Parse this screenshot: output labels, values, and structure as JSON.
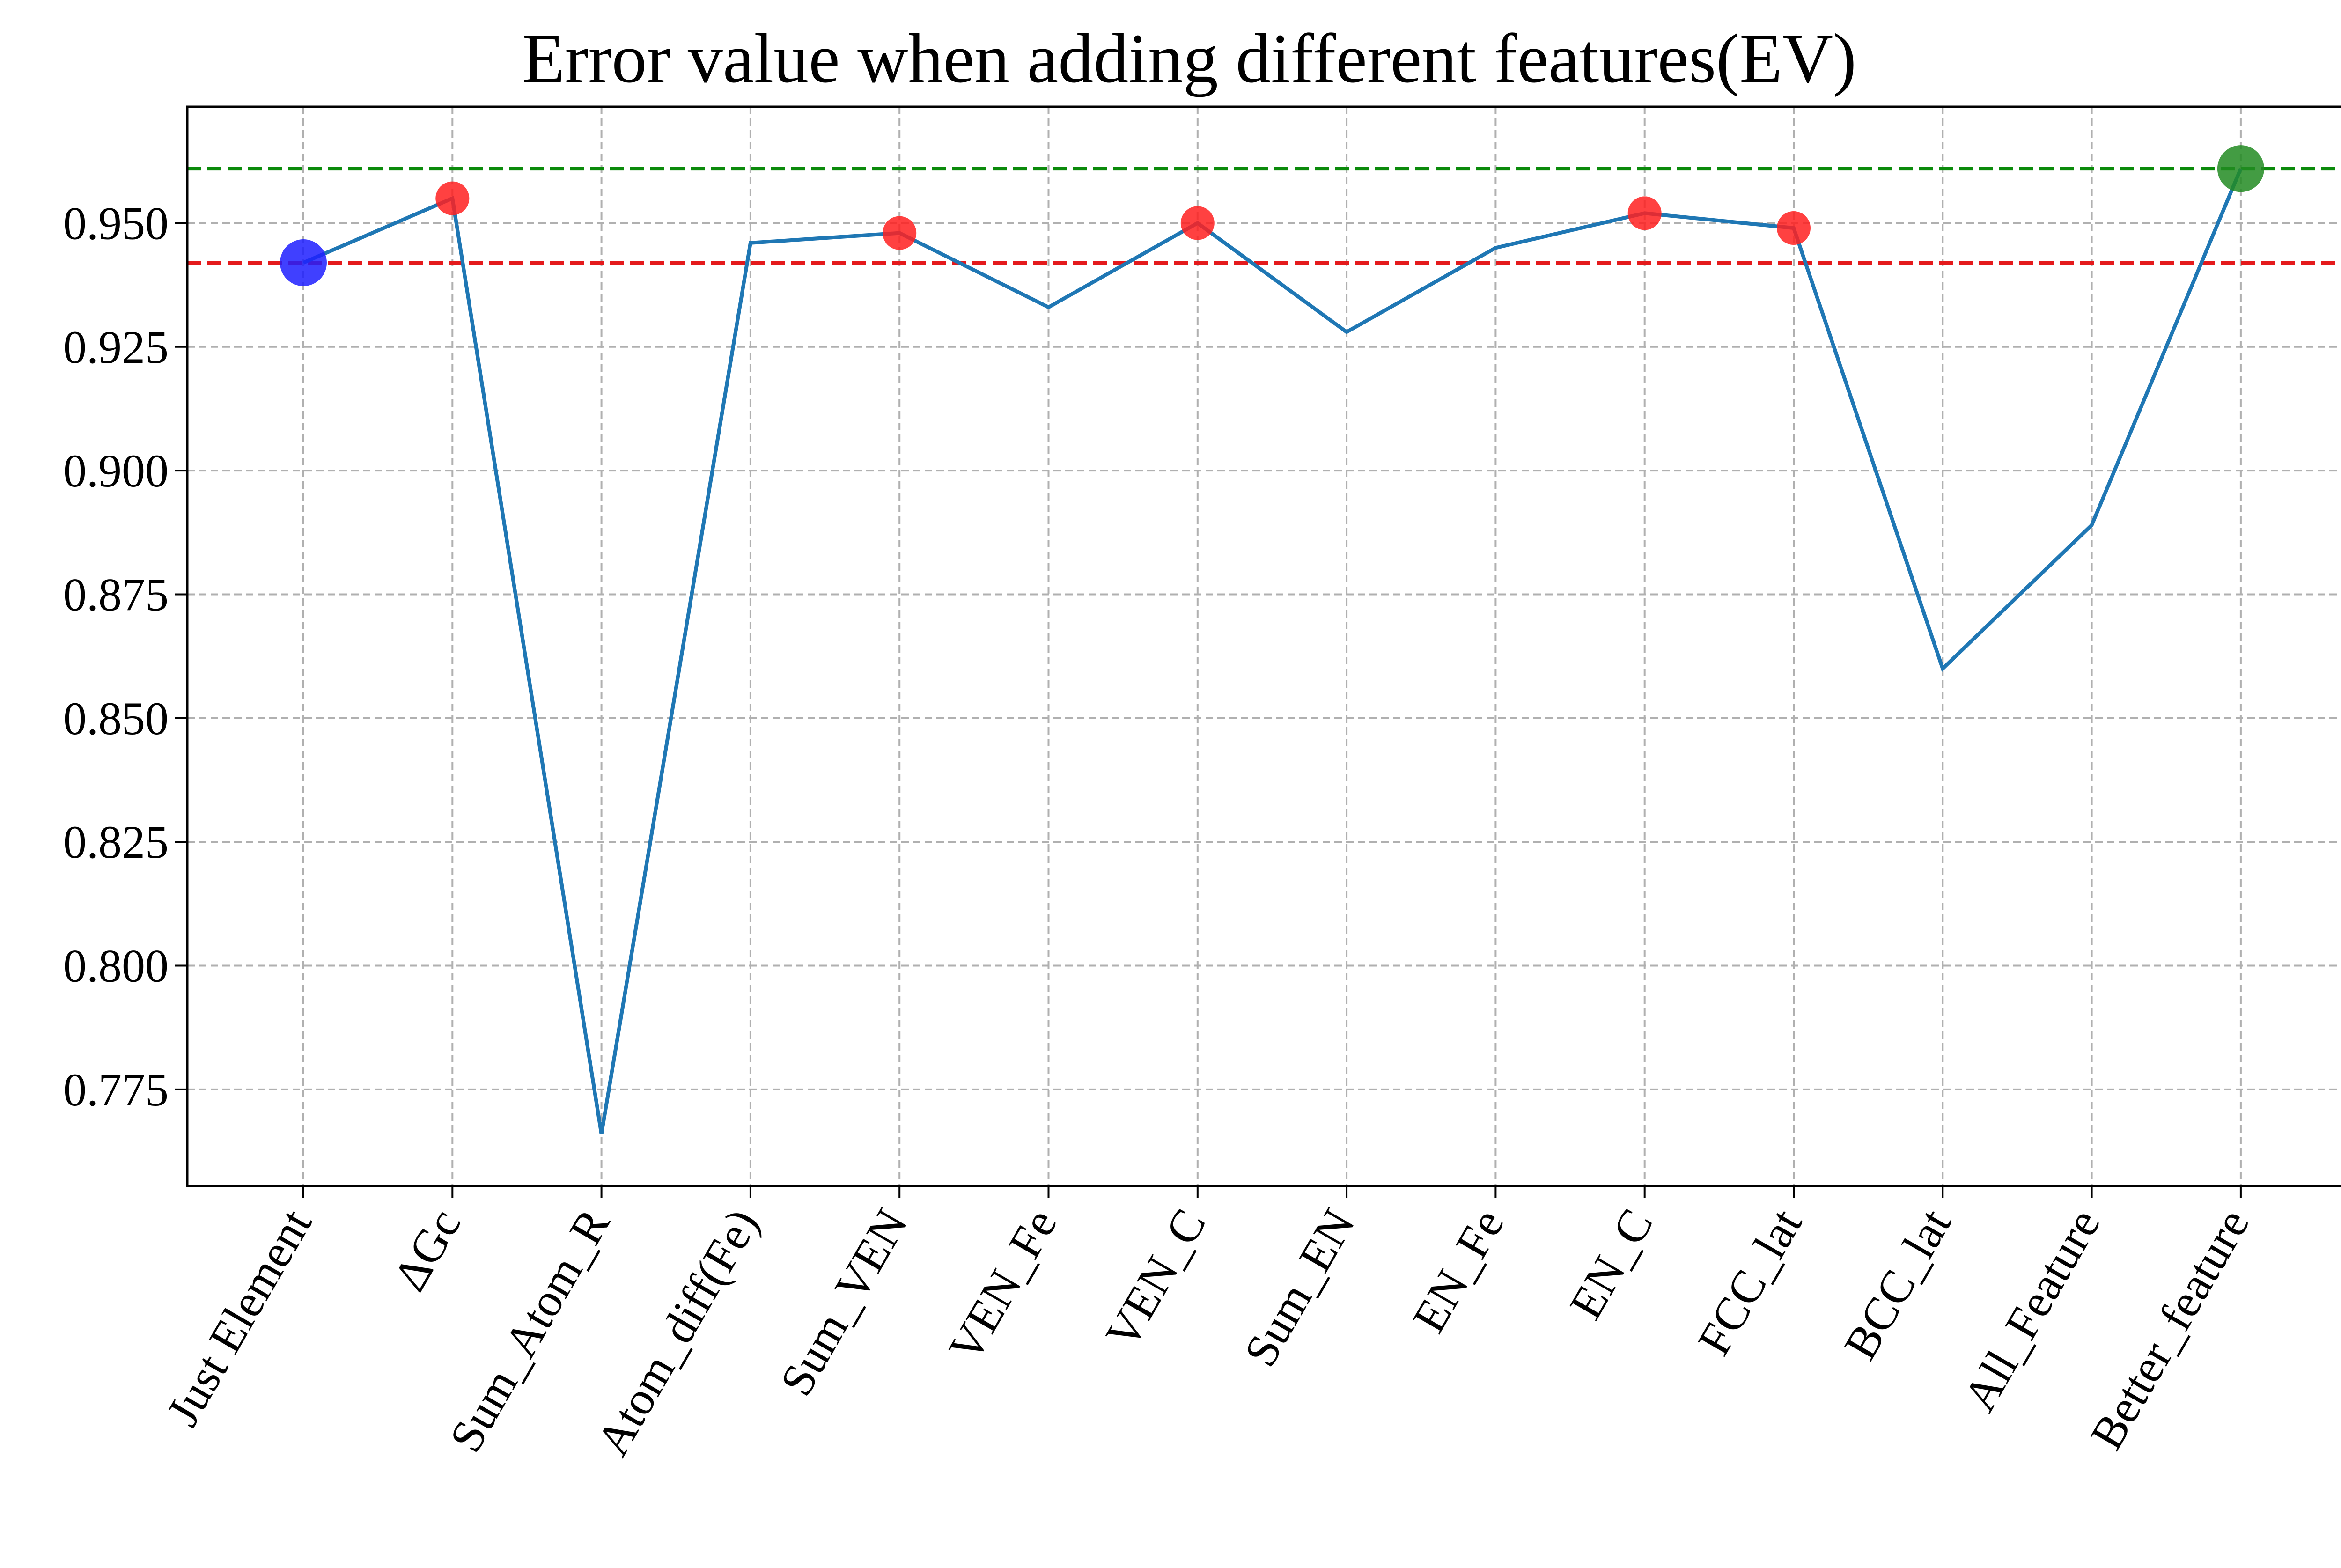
{
  "chart_data": {
    "type": "line",
    "title": "Error value when adding different features(EV)",
    "xlabel": "",
    "ylabel": "",
    "categories": [
      "Just Element",
      "ΔGc",
      "Sum_Atom_R",
      "Atom_diff(Fe)",
      "Sum_VEN",
      "VEN_Fe",
      "VEN_C",
      "Sum_EN",
      "EN_Fe",
      "EN_C",
      "FCC_lat",
      "BCC_lat",
      "All_Feature",
      "Better_feature"
    ],
    "series": [
      {
        "values": [
          0.942,
          0.955,
          0.766,
          0.946,
          0.948,
          0.933,
          0.95,
          0.928,
          0.945,
          0.952,
          0.949,
          0.86,
          0.889,
          0.961
        ],
        "color": "#1f77b4"
      }
    ],
    "ylim": [
      0.7555,
      0.9735
    ],
    "yticks": [
      0.775,
      0.8,
      0.825,
      0.85,
      0.875,
      0.9,
      0.925,
      0.95
    ],
    "yticklabels": [
      "0.775",
      "0.800",
      "0.825",
      "0.850",
      "0.875",
      "0.900",
      "0.925",
      "0.950"
    ],
    "grid": true,
    "reference_lines": [
      {
        "y": 0.942,
        "color": "#e41a1c",
        "style": "dashed"
      },
      {
        "y": 0.961,
        "color": "#0b8a0b",
        "style": "dashed"
      }
    ],
    "highlight_points": [
      {
        "index": 0,
        "color": "#1f1fff",
        "size": "large"
      },
      {
        "index": 1,
        "color": "#ff2020",
        "size": "small"
      },
      {
        "index": 4,
        "color": "#ff2020",
        "size": "small"
      },
      {
        "index": 6,
        "color": "#ff2020",
        "size": "small"
      },
      {
        "index": 9,
        "color": "#ff2020",
        "size": "small"
      },
      {
        "index": 10,
        "color": "#ff2020",
        "size": "small"
      },
      {
        "index": 13,
        "color": "#228b22",
        "size": "large"
      }
    ]
  }
}
